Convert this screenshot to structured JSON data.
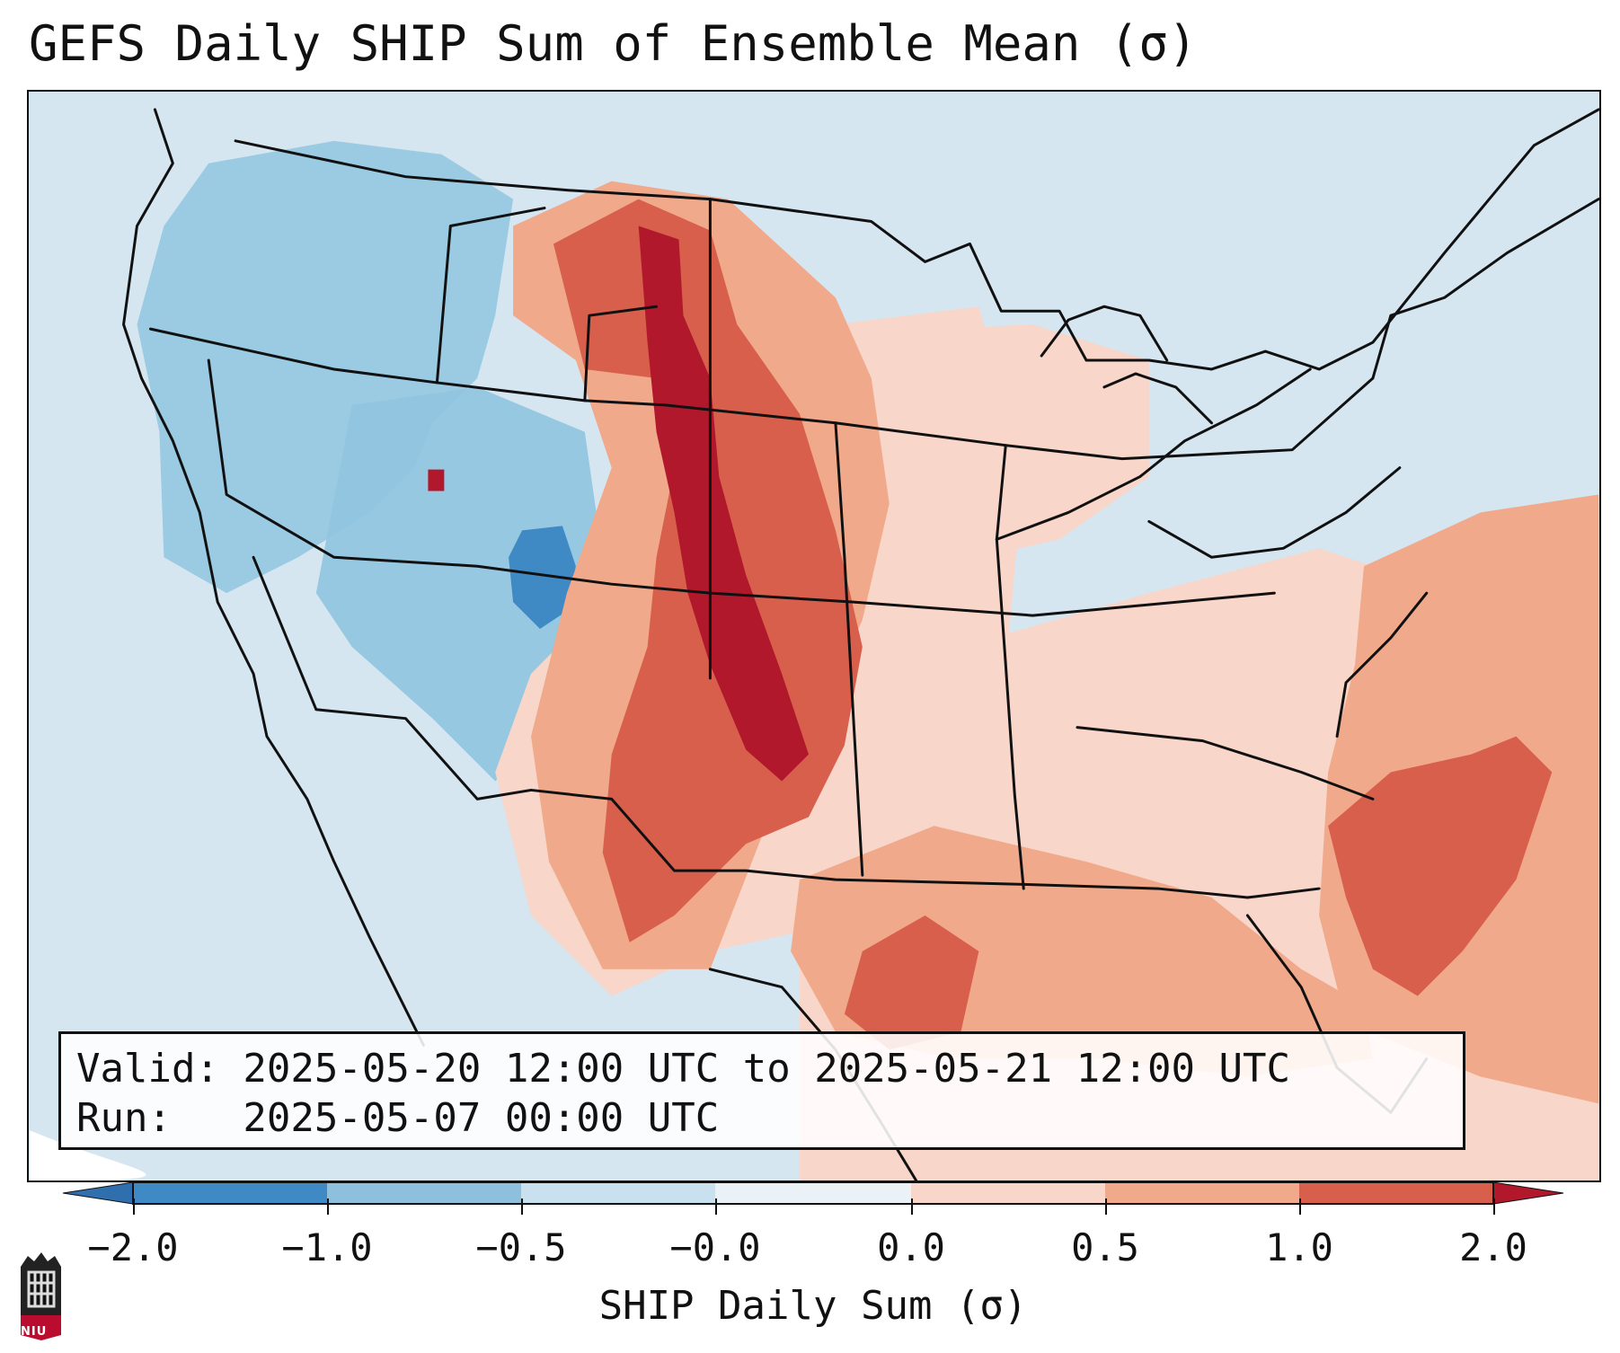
{
  "title": "GEFS Daily SHIP Sum of Ensemble Mean (σ)",
  "info": {
    "valid_line": "Valid: 2025-05-20 12:00 UTC to 2025-05-21 12:00 UTC",
    "run_line": "Run:   2025-05-07 00:00 UTC"
  },
  "colorbar": {
    "label": "SHIP Daily Sum (σ)",
    "ticks": [
      "−2.0",
      "−1.0",
      "−0.5",
      "−0.0",
      "0.0",
      "0.5",
      "1.0",
      "2.0"
    ],
    "colors": [
      "#3f8ac4",
      "#8ebfdc",
      "#c9e0ee",
      "#dce9f3",
      "#f8d6c9",
      "#f1a98b",
      "#d75f4c",
      "#b2182b"
    ]
  },
  "logo": {
    "text": "NIU",
    "color": "#ba0c2f"
  },
  "map": {
    "background_color": "#d6e6f1",
    "positive_color": "#f8d6c9",
    "medium_color": "#f1a98b",
    "strong_color": "#d75f4c",
    "extreme_color": "#b2182b",
    "negative_light_color": "#d2e4f0",
    "negative_medium_color": "#91c5df",
    "negative_strong_color": "#3f8ac4"
  }
}
